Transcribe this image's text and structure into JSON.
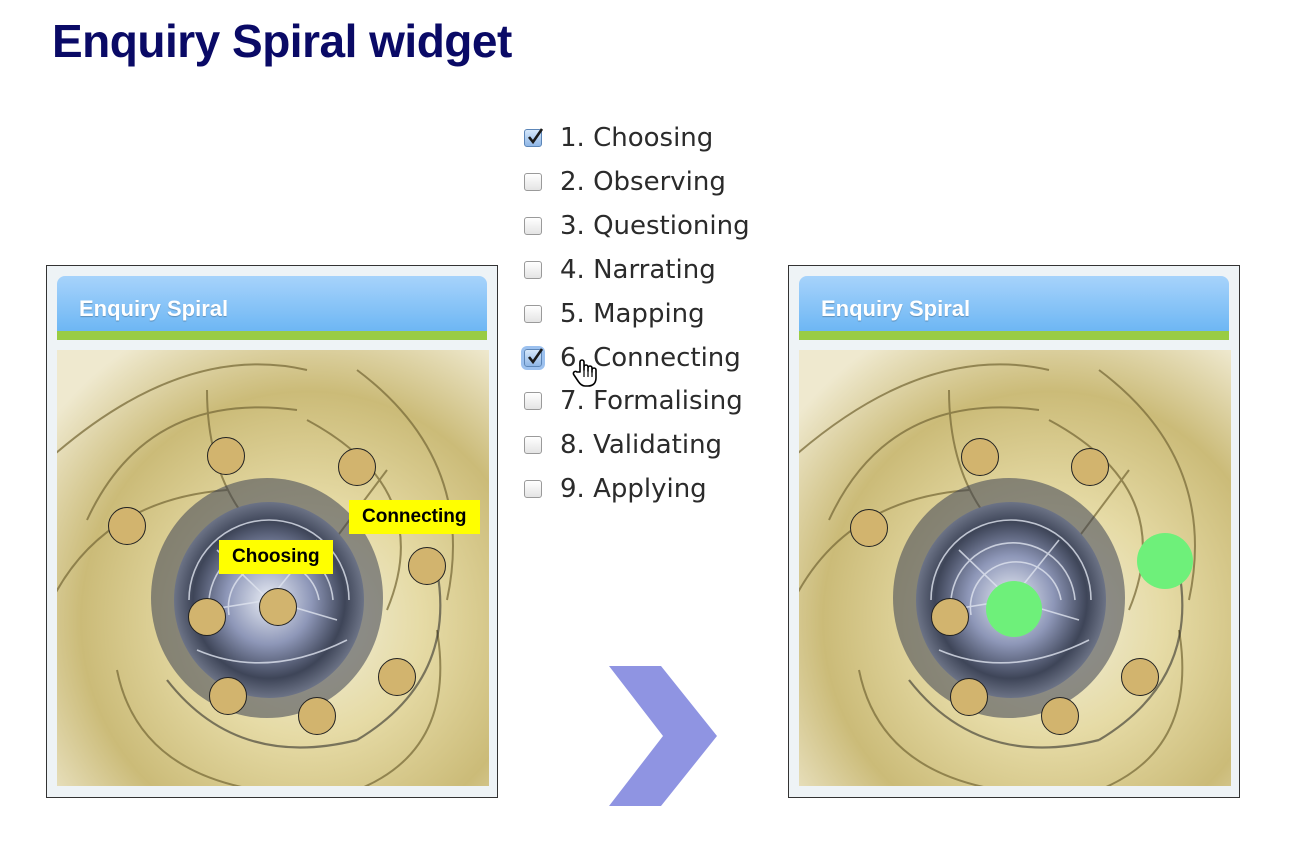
{
  "slide": {
    "title": "Enquiry Spiral widget"
  },
  "checklist": {
    "items": [
      {
        "label": "1. Choosing",
        "checked": true
      },
      {
        "label": "2. Observing",
        "checked": false
      },
      {
        "label": "3. Questioning",
        "checked": false
      },
      {
        "label": "4. Narrating",
        "checked": false
      },
      {
        "label": "5. Mapping",
        "checked": false
      },
      {
        "label": "6. Connecting",
        "checked": true
      },
      {
        "label": "7. Formalising",
        "checked": false
      },
      {
        "label": "8. Validating",
        "checked": false
      },
      {
        "label": "9. Applying",
        "checked": false
      }
    ]
  },
  "widget_before": {
    "title": "Enquiry Spiral",
    "tags": {
      "choosing": "Choosing",
      "connecting": "Connecting"
    }
  },
  "widget_after": {
    "title": "Enquiry Spiral"
  },
  "colors": {
    "title": "#0a0a66",
    "header_blue": "#64b2f3",
    "header_green": "#99cc44",
    "marker": "#d2b46e",
    "marker_active": "#6ef07a",
    "tag_yellow": "#ffff00",
    "arrow": "#8f94e2"
  },
  "icons": {
    "cursor": "hand-pointer-icon",
    "next": "chevron-right-icon"
  }
}
